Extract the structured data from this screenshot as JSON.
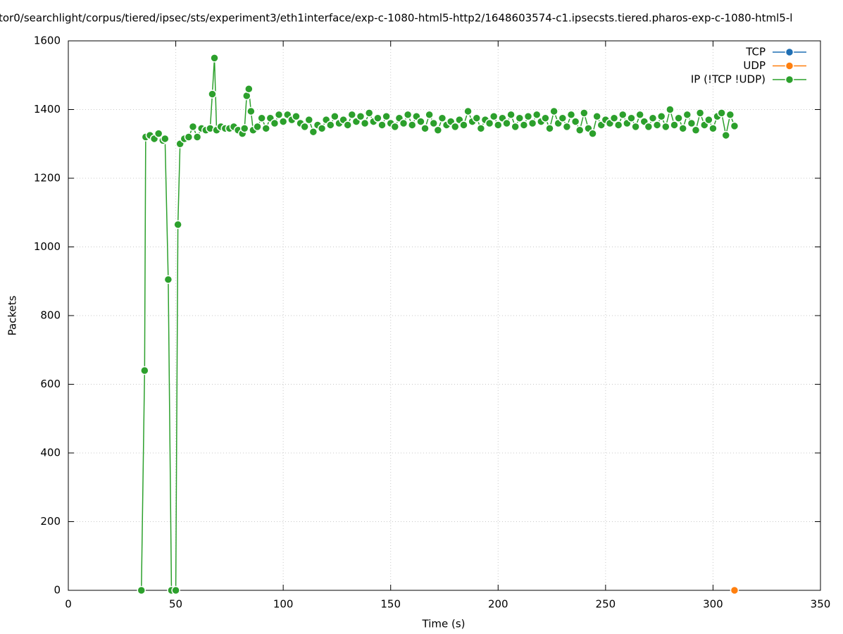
{
  "chart_data": {
    "type": "line",
    "title": "tor0/searchlight/corpus/tiered/ipsec/sts/experiment3/eth1interface/exp-c-1080-html5-http2/1648603574-c1.ipsecsts.tiered.pharos-exp-c-1080-html5-l",
    "x_label": "Time (s)",
    "y_label": "Packets",
    "xlim": [
      0,
      350
    ],
    "xticks": [
      0,
      50,
      100,
      150,
      200,
      250,
      300,
      350
    ],
    "ylim": [
      0,
      1600
    ],
    "yticks": [
      0,
      200,
      400,
      600,
      800,
      1000,
      1200,
      1400,
      1600
    ],
    "grid": true,
    "legend": "top-right",
    "series": [
      {
        "name": "TCP",
        "color": "#1f6fb4",
        "x": [],
        "values": []
      },
      {
        "name": "UDP",
        "color": "#ff7f0e",
        "x": [
          310
        ],
        "values": [
          0
        ]
      },
      {
        "name": "IP (!TCP  !UDP)",
        "color": "#2ca02c",
        "x": [
          34,
          35.5,
          36,
          38,
          40,
          42,
          44,
          45,
          46.5,
          48,
          50,
          51,
          52,
          54,
          56,
          58,
          60,
          62,
          64,
          66,
          67,
          68,
          69,
          71,
          73,
          75,
          77,
          79,
          81,
          82,
          83,
          84,
          85,
          86,
          88,
          90,
          92,
          94,
          96,
          98,
          100,
          102,
          104,
          106,
          108,
          110,
          112,
          114,
          116,
          118,
          120,
          122,
          124,
          126,
          128,
          130,
          132,
          134,
          136,
          138,
          140,
          142,
          144,
          146,
          148,
          150,
          152,
          154,
          156,
          158,
          160,
          162,
          164,
          166,
          168,
          170,
          172,
          174,
          176,
          178,
          180,
          182,
          184,
          186,
          188,
          190,
          192,
          194,
          196,
          198,
          200,
          202,
          204,
          206,
          208,
          210,
          212,
          214,
          216,
          218,
          220,
          222,
          224,
          226,
          228,
          230,
          232,
          234,
          236,
          238,
          240,
          242,
          244,
          246,
          248,
          250,
          252,
          254,
          256,
          258,
          260,
          262,
          264,
          266,
          268,
          270,
          272,
          274,
          276,
          278,
          280,
          282,
          284,
          286,
          288,
          290,
          292,
          294,
          296,
          298,
          300,
          302,
          304,
          306,
          308,
          310
        ],
        "values": [
          0,
          640,
          1320,
          1325,
          1315,
          1330,
          1310,
          1315,
          905,
          0,
          0,
          1065,
          1300,
          1315,
          1320,
          1350,
          1320,
          1345,
          1340,
          1345,
          1445,
          1550,
          1340,
          1350,
          1345,
          1345,
          1350,
          1340,
          1330,
          1345,
          1440,
          1460,
          1395,
          1340,
          1350,
          1375,
          1345,
          1375,
          1360,
          1385,
          1365,
          1385,
          1370,
          1380,
          1360,
          1350,
          1370,
          1335,
          1355,
          1345,
          1370,
          1355,
          1380,
          1360,
          1370,
          1355,
          1385,
          1365,
          1380,
          1360,
          1390,
          1365,
          1375,
          1355,
          1380,
          1360,
          1350,
          1375,
          1360,
          1385,
          1355,
          1380,
          1365,
          1345,
          1385,
          1360,
          1340,
          1375,
          1355,
          1365,
          1350,
          1370,
          1355,
          1395,
          1365,
          1375,
          1345,
          1370,
          1360,
          1380,
          1355,
          1375,
          1360,
          1385,
          1350,
          1375,
          1355,
          1380,
          1360,
          1385,
          1365,
          1375,
          1345,
          1395,
          1360,
          1375,
          1350,
          1385,
          1365,
          1340,
          1390,
          1345,
          1330,
          1380,
          1355,
          1370,
          1360,
          1375,
          1355,
          1385,
          1360,
          1375,
          1350,
          1385,
          1365,
          1350,
          1375,
          1355,
          1380,
          1350,
          1400,
          1355,
          1375,
          1345,
          1385,
          1360,
          1340,
          1390,
          1355,
          1370,
          1345,
          1380,
          1390,
          1325,
          1385,
          1352
        ]
      }
    ]
  }
}
